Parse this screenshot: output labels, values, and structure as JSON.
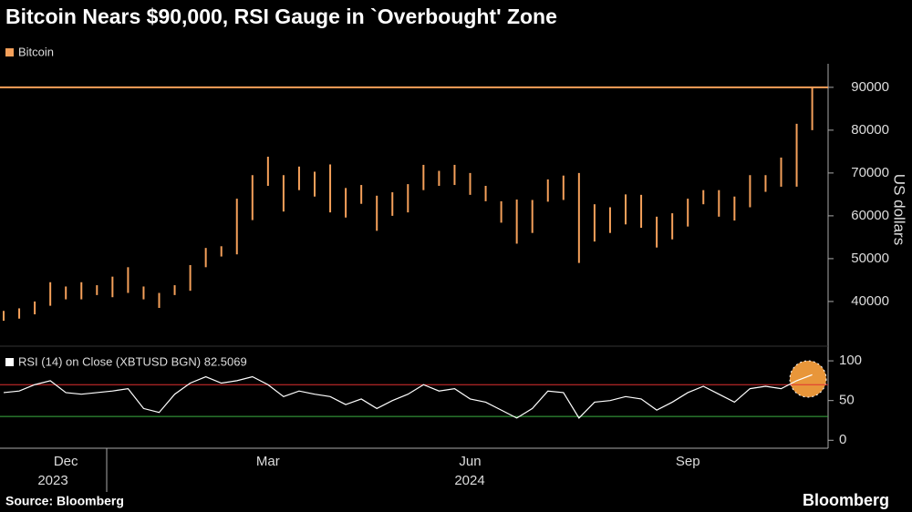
{
  "chart_data": [
    {
      "type": "range-bar",
      "title": "Bitcoin Nears $90,000, RSI Gauge in `Overbought' Zone",
      "y_label": "US dollars",
      "categories": [
        null,
        null,
        null,
        null,
        "Dec",
        null,
        null,
        null,
        null,
        null,
        null,
        null,
        null,
        null,
        null,
        null,
        null,
        "Mar",
        null,
        null,
        null,
        null,
        null,
        null,
        null,
        null,
        null,
        null,
        null,
        null,
        "Jun",
        null,
        null,
        null,
        null,
        null,
        null,
        null,
        null,
        null,
        null,
        null,
        null,
        null,
        "Sep",
        null,
        null,
        null,
        null,
        null,
        null,
        null,
        null
      ],
      "year_labels": [
        "2023",
        "2024"
      ],
      "series": [
        {
          "name": "Bitcoin",
          "color": "#f5a05a",
          "low": [
            35500,
            36000,
            37000,
            39000,
            40500,
            40500,
            41500,
            41000,
            42000,
            40500,
            38500,
            41500,
            42500,
            48000,
            50500,
            51000,
            59000,
            67000,
            61000,
            66000,
            64500,
            60800,
            59600,
            62800,
            56500,
            60000,
            60800,
            66000,
            67000,
            67200,
            64900,
            63400,
            58400,
            53500,
            56000,
            63300,
            63700,
            49000,
            54000,
            56000,
            58000,
            57200,
            52600,
            54500,
            57500,
            62700,
            59800,
            58900,
            62000,
            65600,
            66800,
            66800,
            80000
          ],
          "high": [
            37800,
            38400,
            40000,
            44500,
            43500,
            44500,
            43800,
            45800,
            48000,
            43500,
            42000,
            43800,
            48500,
            52500,
            52900,
            64000,
            69500,
            73800,
            69500,
            71500,
            70300,
            72000,
            66500,
            67200,
            64700,
            65500,
            67400,
            71900,
            70500,
            71900,
            70000,
            67000,
            63400,
            63800,
            63700,
            68500,
            69400,
            70000,
            62700,
            62000,
            65000,
            64900,
            59800,
            60600,
            64000,
            66000,
            66000,
            64500,
            69500,
            69500,
            73600,
            81500,
            89900
          ]
        }
      ],
      "reference_line": {
        "value": 90000,
        "color": "#f5a05a"
      },
      "ylim": [
        30200,
        95500
      ],
      "yticks": [
        40000,
        50000,
        60000,
        70000,
        80000,
        90000
      ]
    },
    {
      "type": "line",
      "series": [
        {
          "name": "RSI (14)  on Close (XBTUSD BGN) 82.5069",
          "color": "#ffffff",
          "values": [
            60,
            62,
            70,
            75,
            60,
            58,
            60,
            62,
            65,
            40,
            35,
            58,
            72,
            80,
            72,
            75,
            80,
            70,
            55,
            62,
            58,
            55,
            45,
            52,
            40,
            50,
            58,
            70,
            62,
            65,
            52,
            48,
            38,
            28,
            40,
            62,
            60,
            28,
            48,
            50,
            55,
            52,
            38,
            48,
            60,
            68,
            58,
            48,
            65,
            68,
            65,
            75,
            82.5069
          ]
        }
      ],
      "reference_lines": [
        {
          "value": 70,
          "color": "#e03030"
        },
        {
          "value": 30,
          "color": "#3cb043"
        }
      ],
      "ylim": [
        -10,
        115
      ],
      "yticks": [
        0,
        50,
        100
      ]
    },
    {
      "source": "Source: Bloomberg",
      "brand": "Bloomberg"
    }
  ]
}
